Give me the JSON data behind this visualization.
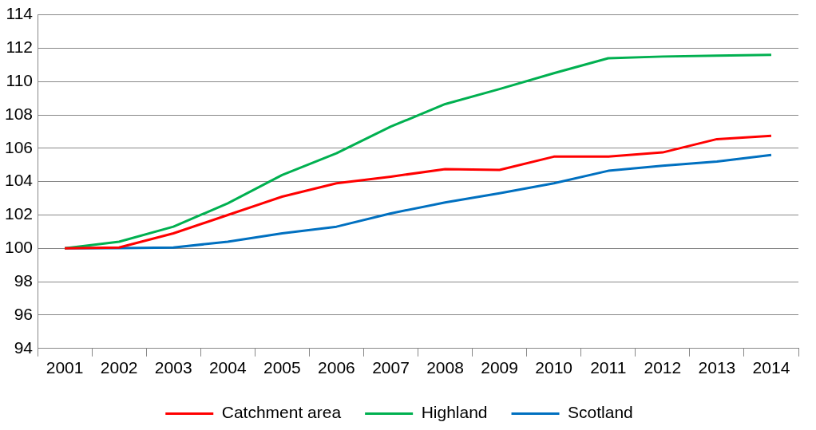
{
  "chart_data": {
    "type": "line",
    "categories": [
      "2001",
      "2002",
      "2003",
      "2004",
      "2005",
      "2006",
      "2007",
      "2008",
      "2009",
      "2010",
      "2011",
      "2012",
      "2013",
      "2014"
    ],
    "series": [
      {
        "name": "Catchment area",
        "color": "#ff0000",
        "values": [
          100,
          100.05,
          100.9,
          102.0,
          103.1,
          103.9,
          104.3,
          104.75,
          104.7,
          105.5,
          105.5,
          105.75,
          106.55,
          106.75
        ]
      },
      {
        "name": "Highland",
        "color": "#00b050",
        "values": [
          100,
          100.4,
          101.3,
          102.7,
          104.4,
          105.7,
          107.3,
          108.65,
          109.55,
          110.5,
          111.4,
          111.5,
          111.55,
          111.6
        ]
      },
      {
        "name": "Scotland",
        "color": "#0070c0",
        "values": [
          100,
          100.02,
          100.05,
          100.4,
          100.9,
          101.3,
          102.1,
          102.75,
          103.3,
          103.9,
          104.65,
          104.95,
          105.2,
          105.6
        ]
      }
    ],
    "ylim": [
      94,
      114
    ],
    "yticks": [
      94,
      96,
      98,
      100,
      102,
      104,
      106,
      108,
      110,
      112,
      114
    ],
    "grid": "y",
    "legend": "bottom",
    "marker": "none",
    "line_style": "solid"
  }
}
